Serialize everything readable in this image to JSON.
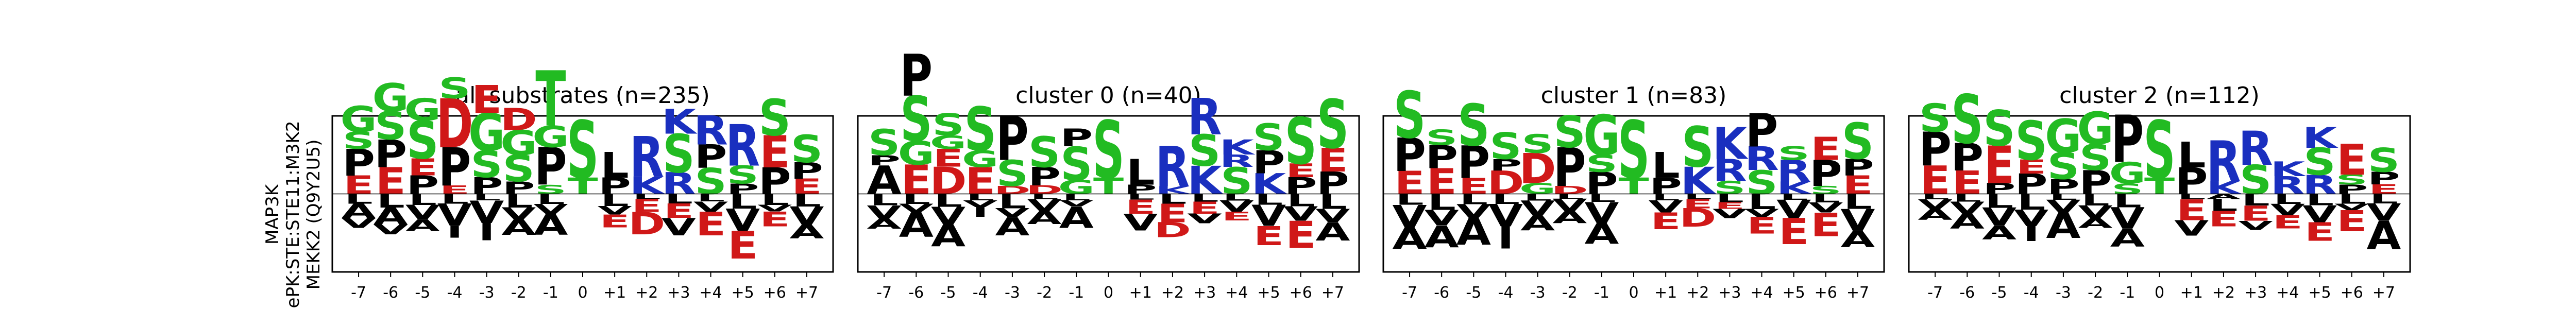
{
  "figure": {
    "ylabel_lines": [
      "MAP3K",
      "ePK:STE:STE11:M3K2",
      "MEKK2 (Q9Y2U5)"
    ]
  },
  "chart_data": [
    {
      "type": "sequence-logo",
      "title": "all substrates (n=235)",
      "x": [
        "-7",
        "-6",
        "-5",
        "-4",
        "-3",
        "-2",
        "-1",
        "0",
        "+1",
        "+2",
        "+3",
        "+4",
        "+5",
        "+6",
        "+7"
      ],
      "ylim": [
        -1.0,
        1.0
      ],
      "colors": {
        "S": "#22bb22",
        "T": "#22bb22",
        "G": "#22bb22",
        "R": "#1a2fbf",
        "K": "#1a2fbf",
        "H": "#1a2fbf",
        "D": "#d01818",
        "E": "#d01818",
        "P": "#000000",
        "L": "#000000",
        "V": "#000000",
        "A": "#000000",
        "F": "#000000",
        "I": "#000000",
        "M": "#000000",
        "W": "#000000",
        "Y": "#000000",
        "C": "#000000",
        "N": "#7b2fbf",
        "Q": "#7b2fbf"
      },
      "positive": [
        [
          "E",
          "P",
          "S",
          "G"
        ],
        [
          "E",
          "P",
          "S",
          "G"
        ],
        [
          "P",
          "E",
          "S",
          "G"
        ],
        [
          "E",
          "P",
          "D",
          "S"
        ],
        [
          "P",
          "S",
          "G",
          "E"
        ],
        [
          "P",
          "S",
          "G",
          "D"
        ],
        [
          "S",
          "P",
          "G",
          "T"
        ],
        [
          "T",
          "S"
        ],
        [
          "P",
          "L"
        ],
        [
          "K",
          "R"
        ],
        [
          "R",
          "S",
          "K"
        ],
        [
          "S",
          "P",
          "R"
        ],
        [
          "P",
          "S",
          "R"
        ],
        [
          "P",
          "E",
          "S"
        ],
        [
          "E",
          "P",
          "S"
        ]
      ],
      "negative": [
        [
          "L",
          "A",
          "V"
        ],
        [
          "L",
          "A",
          "V"
        ],
        [
          "L",
          "V",
          "A"
        ],
        [
          "L",
          "V",
          "I"
        ],
        [
          "L",
          "V",
          "I"
        ],
        [
          "L",
          "V",
          "A"
        ],
        [
          "L",
          "V",
          "A"
        ],
        [],
        [
          "L",
          "V",
          "E"
        ],
        [
          "L",
          "E",
          "D"
        ],
        [
          "L",
          "E",
          "V"
        ],
        [
          "L",
          "V",
          "E"
        ],
        [
          "L",
          "V",
          "E"
        ],
        [
          "L",
          "V",
          "E"
        ],
        [
          "L",
          "V",
          "A"
        ]
      ]
    },
    {
      "type": "sequence-logo",
      "title": "cluster 0 (n=40)",
      "x": [
        "-7",
        "-6",
        "-5",
        "-4",
        "-3",
        "-2",
        "-1",
        "0",
        "+1",
        "+2",
        "+3",
        "+4",
        "+5",
        "+6",
        "+7"
      ],
      "ylim": [
        -1.0,
        1.0
      ],
      "positive": [
        [
          "A",
          "P",
          "S"
        ],
        [
          "E",
          "G",
          "S",
          "P"
        ],
        [
          "D",
          "E",
          "G",
          "S"
        ],
        [
          "E",
          "G",
          "S"
        ],
        [
          "D",
          "S",
          "P"
        ],
        [
          "D",
          "P",
          "S"
        ],
        [
          "G",
          "S",
          "P"
        ],
        [
          "T",
          "S"
        ],
        [
          "P",
          "L"
        ],
        [
          "K",
          "R"
        ],
        [
          "K",
          "S",
          "R"
        ],
        [
          "S",
          "R",
          "K"
        ],
        [
          "K",
          "P",
          "S"
        ],
        [
          "P",
          "E",
          "S"
        ],
        [
          "P",
          "E",
          "S"
        ]
      ],
      "negative": [
        [
          "L",
          "V",
          "A"
        ],
        [
          "L",
          "V",
          "A"
        ],
        [
          "L",
          "V",
          "A"
        ],
        [
          "L",
          "V",
          "I"
        ],
        [
          "L",
          "V",
          "A"
        ],
        [
          "L",
          "V",
          "A"
        ],
        [
          "L",
          "V",
          "A"
        ],
        [],
        [
          "L",
          "E",
          "V"
        ],
        [
          "L",
          "E",
          "D"
        ],
        [
          "L",
          "E",
          "V"
        ],
        [
          "L",
          "V",
          "E"
        ],
        [
          "L",
          "V",
          "E"
        ],
        [
          "L",
          "V",
          "E"
        ],
        [
          "L",
          "V",
          "A"
        ]
      ]
    },
    {
      "type": "sequence-logo",
      "title": "cluster 1 (n=83)",
      "x": [
        "-7",
        "-6",
        "-5",
        "-4",
        "-3",
        "-2",
        "-1",
        "0",
        "+1",
        "+2",
        "+3",
        "+4",
        "+5",
        "+6",
        "+7"
      ],
      "ylim": [
        -1.0,
        1.0
      ],
      "positive": [
        [
          "E",
          "P",
          "S"
        ],
        [
          "E",
          "P",
          "S"
        ],
        [
          "E",
          "P",
          "S"
        ],
        [
          "D",
          "P",
          "S"
        ],
        [
          "G",
          "D",
          "S"
        ],
        [
          "D",
          "P",
          "S"
        ],
        [
          "P",
          "S",
          "G"
        ],
        [
          "T",
          "S"
        ],
        [
          "P",
          "L"
        ],
        [
          "K",
          "S"
        ],
        [
          "S",
          "R",
          "K"
        ],
        [
          "S",
          "R",
          "P"
        ],
        [
          "K",
          "R",
          "S"
        ],
        [
          "S",
          "P",
          "E"
        ],
        [
          "E",
          "P",
          "S"
        ]
      ],
      "negative": [
        [
          "L",
          "V",
          "A"
        ],
        [
          "L",
          "V",
          "A"
        ],
        [
          "L",
          "V",
          "A"
        ],
        [
          "L",
          "V",
          "I"
        ],
        [
          "L",
          "V",
          "A"
        ],
        [
          "L",
          "V",
          "A"
        ],
        [
          "L",
          "V",
          "A"
        ],
        [],
        [
          "L",
          "V",
          "E"
        ],
        [
          "L",
          "E",
          "D"
        ],
        [
          "L",
          "E",
          "V"
        ],
        [
          "L",
          "V",
          "E"
        ],
        [
          "L",
          "V",
          "E"
        ],
        [
          "L",
          "V",
          "E"
        ],
        [
          "L",
          "V",
          "A"
        ]
      ]
    },
    {
      "type": "sequence-logo",
      "title": "cluster 2 (n=112)",
      "x": [
        "-7",
        "-6",
        "-5",
        "-4",
        "-3",
        "-2",
        "-1",
        "0",
        "+1",
        "+2",
        "+3",
        "+4",
        "+5",
        "+6",
        "+7"
      ],
      "ylim": [
        -1.0,
        1.0
      ],
      "positive": [
        [
          "E",
          "P",
          "S"
        ],
        [
          "E",
          "P",
          "S"
        ],
        [
          "P",
          "E",
          "S"
        ],
        [
          "P",
          "E",
          "S"
        ],
        [
          "P",
          "S",
          "G"
        ],
        [
          "P",
          "S",
          "G"
        ],
        [
          "S",
          "G",
          "P"
        ],
        [
          "T",
          "S"
        ],
        [
          "P",
          "L"
        ],
        [
          "K",
          "R"
        ],
        [
          "S",
          "R"
        ],
        [
          "R",
          "K"
        ],
        [
          "R",
          "S",
          "K"
        ],
        [
          "P",
          "S",
          "E"
        ],
        [
          "E",
          "P",
          "S"
        ]
      ],
      "negative": [
        [
          "L",
          "V",
          "A"
        ],
        [
          "L",
          "V",
          "A"
        ],
        [
          "L",
          "V",
          "A"
        ],
        [
          "L",
          "V",
          "I"
        ],
        [
          "L",
          "V",
          "A"
        ],
        [
          "L",
          "V",
          "A"
        ],
        [
          "L",
          "V",
          "A"
        ],
        [],
        [
          "L",
          "E",
          "V"
        ],
        [
          "A",
          "L",
          "E"
        ],
        [
          "L",
          "E",
          "V"
        ],
        [
          "L",
          "V",
          "E"
        ],
        [
          "L",
          "V",
          "E"
        ],
        [
          "L",
          "V",
          "E"
        ],
        [
          "L",
          "V",
          "A"
        ]
      ]
    }
  ]
}
